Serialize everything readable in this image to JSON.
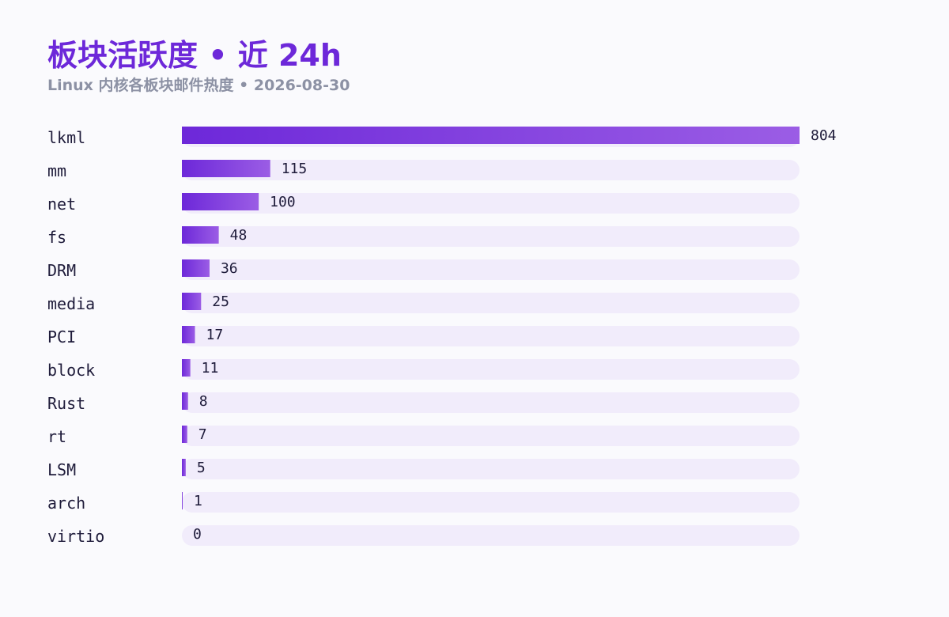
{
  "header": {
    "title": "板块活跃度 • 近 24h",
    "subtitle": "Linux 内核各板块邮件热度 • 2026-08-30"
  },
  "colors": {
    "title": "#6d28d9",
    "subtitle": "#8c91a4",
    "track": "#f1ecfb",
    "bar_start": "#6d28d9",
    "bar_end": "#9b5de5",
    "text": "#1e1b3a",
    "background": "#fafafd"
  },
  "chart_data": {
    "type": "bar",
    "orientation": "horizontal",
    "title": "板块活跃度 • 近 24h",
    "subtitle": "Linux 内核各板块邮件热度 • 2026-08-30",
    "categories": [
      "lkml",
      "mm",
      "net",
      "fs",
      "DRM",
      "media",
      "PCI",
      "block",
      "Rust",
      "rt",
      "LSM",
      "arch",
      "virtio"
    ],
    "values": [
      804,
      115,
      100,
      48,
      36,
      25,
      17,
      11,
      8,
      7,
      5,
      1,
      0
    ],
    "xlim": [
      0,
      804
    ],
    "grid": false,
    "legend": "none"
  }
}
